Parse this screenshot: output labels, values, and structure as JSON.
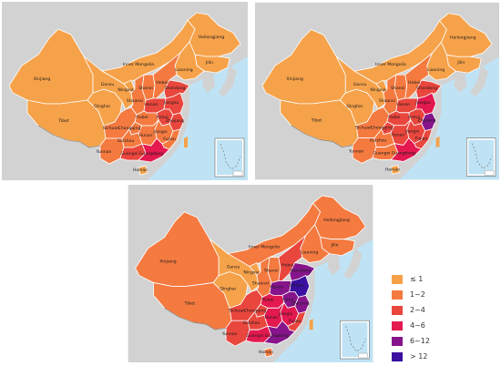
{
  "colors": {
    "land": "#d2d2d2",
    "sea": "#bfe3f4",
    "border": "#ffffff",
    "nineDash": "#6a6a6a"
  },
  "legend": [
    {
      "label": "≤ 1",
      "color": "#f6a24a"
    },
    {
      "label": "1~2",
      "color": "#f47a40"
    },
    {
      "label": "2~4",
      "color": "#e9463d"
    },
    {
      "label": "4~6",
      "color": "#e3194f"
    },
    {
      "label": "6~12",
      "color": "#86158b"
    },
    {
      "label": "> 12",
      "color": "#3b0fa0"
    }
  ],
  "maps": [
    {
      "labels": {
        "xinjiang": "Xinjiang",
        "tibet": "Tibet",
        "qinghai": "Qinghai",
        "gansu": "Gansu",
        "innerMongolia": "Inner Mongolia",
        "heilongjiang": "Heilongjiang",
        "jilin": "Jilin",
        "liaoning": "Liaoning",
        "hebei": "Hebei",
        "shanxi": "Shanxi",
        "ningxia": "Ningxia",
        "shaanxi": "Shaanxi",
        "henan": "Henan",
        "shandong": "Shandong",
        "jiangsu": "Jiangsu",
        "anhui": "Anhui",
        "hubei": "Hubei",
        "sichuan": "Sichuan",
        "chongqing": "Chongqing",
        "hunan": "Hunan",
        "jiangxi": "Jiangxi",
        "zhejiang": "Zhejiang",
        "fujian": "Fujian",
        "guizhou": "Guizhou",
        "yunnan": "Yunnan",
        "guangxi": "Guangxi",
        "guangdong": "Guangdong",
        "hainan": "Hainan"
      },
      "regionLevel": {
        "xinjiang": 0,
        "tibet": 0,
        "qinghai": 0,
        "gansu": 0,
        "innerMongolia": 0,
        "heilongjiang": 0,
        "jilin": 0,
        "liaoning": 0,
        "ningxia": 0,
        "shaanxi": 1,
        "shanxi": 1,
        "hebei": 1,
        "henan": 2,
        "shandong": 2,
        "jiangsu": 2,
        "anhui": 2,
        "zhejiang": 2,
        "hubei": 1,
        "sichuan": 1,
        "chongqing": 1,
        "guizhou": 1,
        "yunnan": 1,
        "hunan": 1,
        "jiangxi": 1,
        "fujian": 1,
        "guangxi": 2,
        "guangdong": 3,
        "hainan": 0
      }
    },
    {
      "labels": {
        "xinjiang": "Xinjiang",
        "tibet": "Tibet",
        "qinghai": "Qinghai",
        "gansu": "Gansu",
        "innerMongolia": "Inner Mongolia",
        "heilongjiang": "Heilongjiang",
        "jilin": "Jilin",
        "liaoning": "Liaoning",
        "hebei": "Hebei",
        "shanxi": "Shanxi",
        "ningxia": "Ningxia",
        "shaanxi": "Shaanxi",
        "henan": "Henan",
        "shandong": "Shandong",
        "jiangsu": "Jiangsu",
        "anhui": "Anhui",
        "hubei": "Hubei",
        "sichuan": "Sichuan",
        "chongqing": "Chongqing",
        "hunan": "Hunan",
        "jiangxi": "Jiangxi",
        "zhejiang": "Zhejiang",
        "fujian": "Fujian",
        "guizhou": "Guizhou",
        "yunnan": "Yunnan",
        "guangxi": "Guangxi",
        "guangdong": "Guangdong",
        "hainan": "Hainan"
      },
      "regionLevel": {
        "xinjiang": 0,
        "tibet": 0,
        "qinghai": 0,
        "gansu": 0,
        "innerMongolia": 0,
        "heilongjiang": 0,
        "jilin": 0,
        "liaoning": 0,
        "ningxia": 0,
        "shaanxi": 1,
        "shanxi": 1,
        "hebei": 1,
        "henan": 2,
        "shandong": 2,
        "jiangsu": 3,
        "anhui": 2,
        "zhejiang": 4,
        "hubei": 2,
        "sichuan": 1,
        "chongqing": 2,
        "guizhou": 1,
        "yunnan": 1,
        "hunan": 2,
        "jiangxi": 2,
        "fujian": 2,
        "guangxi": 1,
        "guangdong": 3,
        "hainan": 0
      }
    },
    {
      "labels": {
        "xinjiang": "Xinjiang",
        "tibet": "Tibet",
        "qinghai": "Qinghai",
        "gansu": "Gansu",
        "innerMongolia": "Inner Mongolia",
        "heilongjiang": "Heilongjiang",
        "jilin": "Jilin",
        "liaoning": "Liaoning",
        "hebei": "Hebei",
        "shanxi": "Shanxi",
        "ningxia": "Ningxia",
        "shaanxi": "Shaanxi",
        "henan": "Henan",
        "shandong": "Shandong",
        "jiangsu": "Jiangsu",
        "anhui": "Anhui",
        "hubei": "Hubei",
        "sichuan": "Sichuan",
        "chongqing": "Chongqing",
        "hunan": "Hunan",
        "jiangxi": "Jiangxi",
        "zhejiang": "Zhejiang",
        "fujian": "Fujian",
        "guizhou": "Guizhou",
        "yunnan": "Yunnan",
        "guangxi": "Guangxi",
        "guangdong": "Guangdong",
        "hainan": "Hainan"
      },
      "regionLevel": {
        "xinjiang": 1,
        "tibet": 1,
        "qinghai": 0,
        "gansu": 0,
        "innerMongolia": 1,
        "heilongjiang": 1,
        "jilin": 1,
        "liaoning": 1,
        "ningxia": 0,
        "shaanxi": 1,
        "shanxi": 1,
        "hebei": 2,
        "henan": 4,
        "shandong": 4,
        "jiangsu": 5,
        "anhui": 4,
        "zhejiang": 4,
        "hubei": 3,
        "sichuan": 2,
        "chongqing": 2,
        "guizhou": 2,
        "yunnan": 2,
        "hunan": 3,
        "jiangxi": 3,
        "fujian": 2,
        "guangxi": 3,
        "guangdong": 4,
        "hainan": 1
      }
    }
  ]
}
